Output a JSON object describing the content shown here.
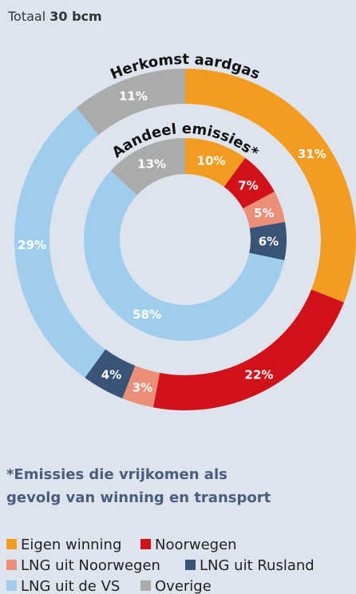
{
  "header": {
    "label": "Totaal",
    "value": "30 bcm"
  },
  "chart_data": {
    "type": "donut",
    "categories": [
      "Eigen winning",
      "Noorwegen",
      "LNG uit Noorwegen",
      "LNG uit Rusland",
      "LNG uit de VS",
      "Overige"
    ],
    "colors": [
      "#f39c1f",
      "#d2121b",
      "#ec8f78",
      "#3a5478",
      "#9fcdee",
      "#a9acab"
    ],
    "series": [
      {
        "name": "Herkomst aardgas",
        "values": [
          31,
          22,
          3,
          4,
          29,
          11
        ],
        "value_labels": [
          "31%",
          "22%",
          "3%",
          "4%",
          "29%",
          "11%"
        ]
      },
      {
        "name": "Aandeel emissies*",
        "values": [
          10,
          7,
          5,
          6,
          58,
          13
        ],
        "value_labels": [
          "10%",
          "7%",
          "5%",
          "6%",
          "58%",
          "13%"
        ]
      }
    ]
  },
  "footnote": [
    "*Emissies die vrijkomen als",
    "gevolg van winning en transport"
  ]
}
